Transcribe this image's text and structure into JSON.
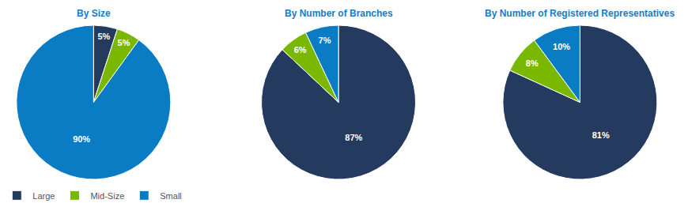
{
  "chart_data": [
    {
      "type": "pie",
      "title": "By Size",
      "categories": [
        "Large",
        "Mid-Size",
        "Small"
      ],
      "values": [
        5,
        5,
        90
      ],
      "value_labels": [
        "5%",
        "5%",
        "90%"
      ],
      "colors": [
        "#243a5e",
        "#7ab800",
        "#0a7cc4"
      ],
      "data_labels": true,
      "legend": "bottom"
    },
    {
      "type": "pie",
      "title": "By Number of Branches",
      "categories": [
        "Large",
        "Mid-Size",
        "Small"
      ],
      "values": [
        87,
        6,
        7
      ],
      "value_labels": [
        "87%",
        "6%",
        "7%"
      ],
      "colors": [
        "#243a5e",
        "#7ab800",
        "#0a7cc4"
      ],
      "data_labels": true,
      "legend": "bottom"
    },
    {
      "type": "pie",
      "title": "By Number of Registered Representatives",
      "categories": [
        "Large",
        "Mid-Size",
        "Small"
      ],
      "values": [
        81,
        8,
        10
      ],
      "value_labels": [
        "81%",
        "8%",
        "10%"
      ],
      "colors": [
        "#243a5e",
        "#7ab800",
        "#0a7cc4"
      ],
      "data_labels": true,
      "legend": "bottom"
    }
  ]
}
